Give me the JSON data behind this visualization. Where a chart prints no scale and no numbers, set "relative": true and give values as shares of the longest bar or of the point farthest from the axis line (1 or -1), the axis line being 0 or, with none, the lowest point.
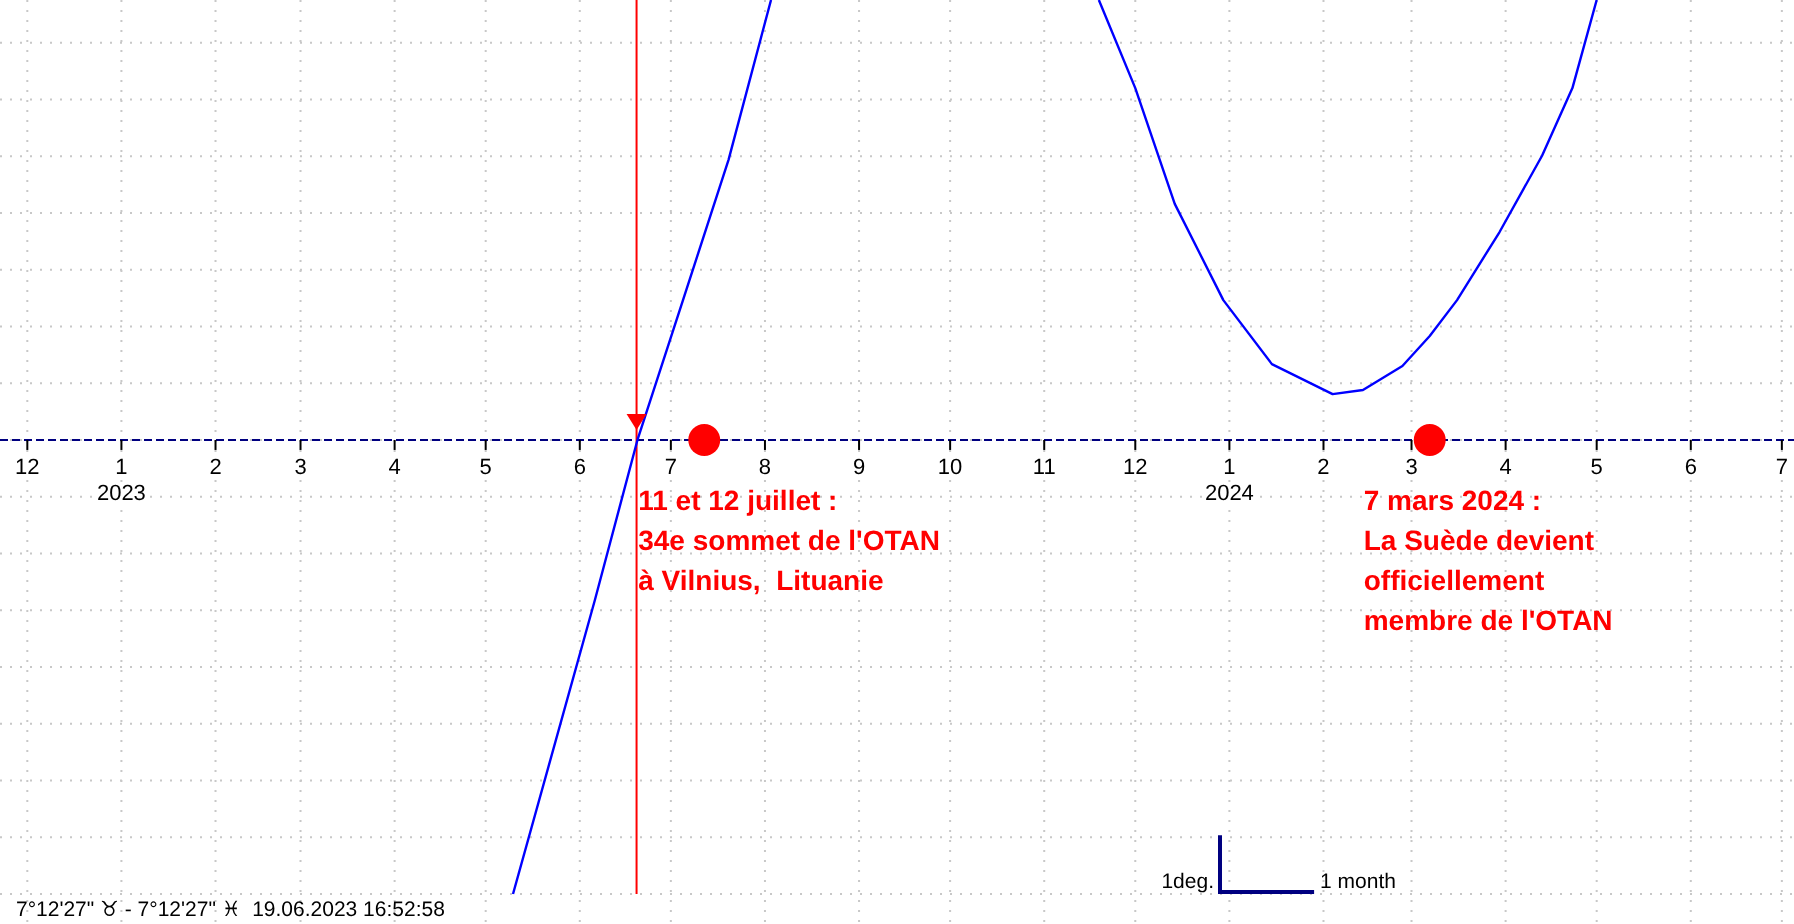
{
  "chart_data": {
    "type": "line",
    "relative": true,
    "grid": true,
    "xlim": [
      "2022-11-22",
      "2024-07-05"
    ],
    "xticks": [
      {
        "value": "2022-12-01",
        "label": "12"
      },
      {
        "value": "2023-01-01",
        "label": "1\n2023"
      },
      {
        "value": "2023-02-01",
        "label": "2"
      },
      {
        "value": "2023-03-01",
        "label": "3"
      },
      {
        "value": "2023-04-01",
        "label": "4"
      },
      {
        "value": "2023-05-01",
        "label": "5"
      },
      {
        "value": "2023-06-01",
        "label": "6"
      },
      {
        "value": "2023-07-01",
        "label": "7"
      },
      {
        "value": "2023-08-01",
        "label": "8"
      },
      {
        "value": "2023-09-01",
        "label": "9"
      },
      {
        "value": "2023-10-01",
        "label": "10"
      },
      {
        "value": "2023-11-01",
        "label": "11"
      },
      {
        "value": "2023-12-01",
        "label": "12"
      },
      {
        "value": "2024-01-01",
        "label": "1\n2024"
      },
      {
        "value": "2024-02-01",
        "label": "2"
      },
      {
        "value": "2024-03-01",
        "label": "3"
      },
      {
        "value": "2024-04-01",
        "label": "4"
      },
      {
        "value": "2024-05-01",
        "label": "5"
      },
      {
        "value": "2024-06-01",
        "label": "6"
      },
      {
        "value": "2024-07-01",
        "label": "7"
      }
    ],
    "series": [
      {
        "color": "#0000ff",
        "marker": "none",
        "x": [
          "2023-05-10",
          "2023-06-06",
          "2023-06-20",
          "2023-07-05",
          "2023-07-20",
          "2023-08-03",
          "2023-10-01",
          "2023-11-19",
          "2023-12-01",
          "2023-12-14",
          "2023-12-30",
          "2024-01-15",
          "2024-02-04",
          "2024-02-14",
          "2024-02-27",
          "2024-03-07",
          "2024-03-16",
          "2024-03-30",
          "2024-04-13",
          "2024-04-23",
          "2024-05-01"
        ],
        "values": [
          -1,
          -0.352,
          0,
          0.308,
          0.617,
          0.969,
          null,
          0.969,
          0.775,
          0.52,
          0.308,
          0.167,
          0.101,
          0.11,
          0.163,
          0.229,
          0.308,
          0.458,
          0.626,
          0.775,
          0.969
        ]
      },
      {
        "type": "scatter",
        "color": "#ff0000",
        "marker": "circle",
        "x": [
          "2023-07-12",
          "2024-03-07"
        ],
        "values": [
          0,
          0
        ]
      }
    ],
    "ref_lines": [
      {
        "axis": "x",
        "value": "2023-06-19T16:52",
        "color": "#ff0000"
      },
      {
        "axis": "y",
        "value": 0,
        "color": "#000080",
        "line_style": "dashed"
      }
    ],
    "annotations": [
      {
        "text": "11 et 12 juillet :\n34e sommet de l'OTAN\nà Vilnius,  Lituanie",
        "x": "2023-07-12",
        "y": 0
      },
      {
        "text": "7 mars 2024 :\nLa Suède devient\nofficiellement\nmembre de l'OTAN",
        "x": "2024-03-07",
        "y": 0
      },
      "7°12'27\" ♉ - 7°12'27\" ♓  19.06.2023 16:52:58",
      "1deg.",
      "1 month"
    ]
  }
}
